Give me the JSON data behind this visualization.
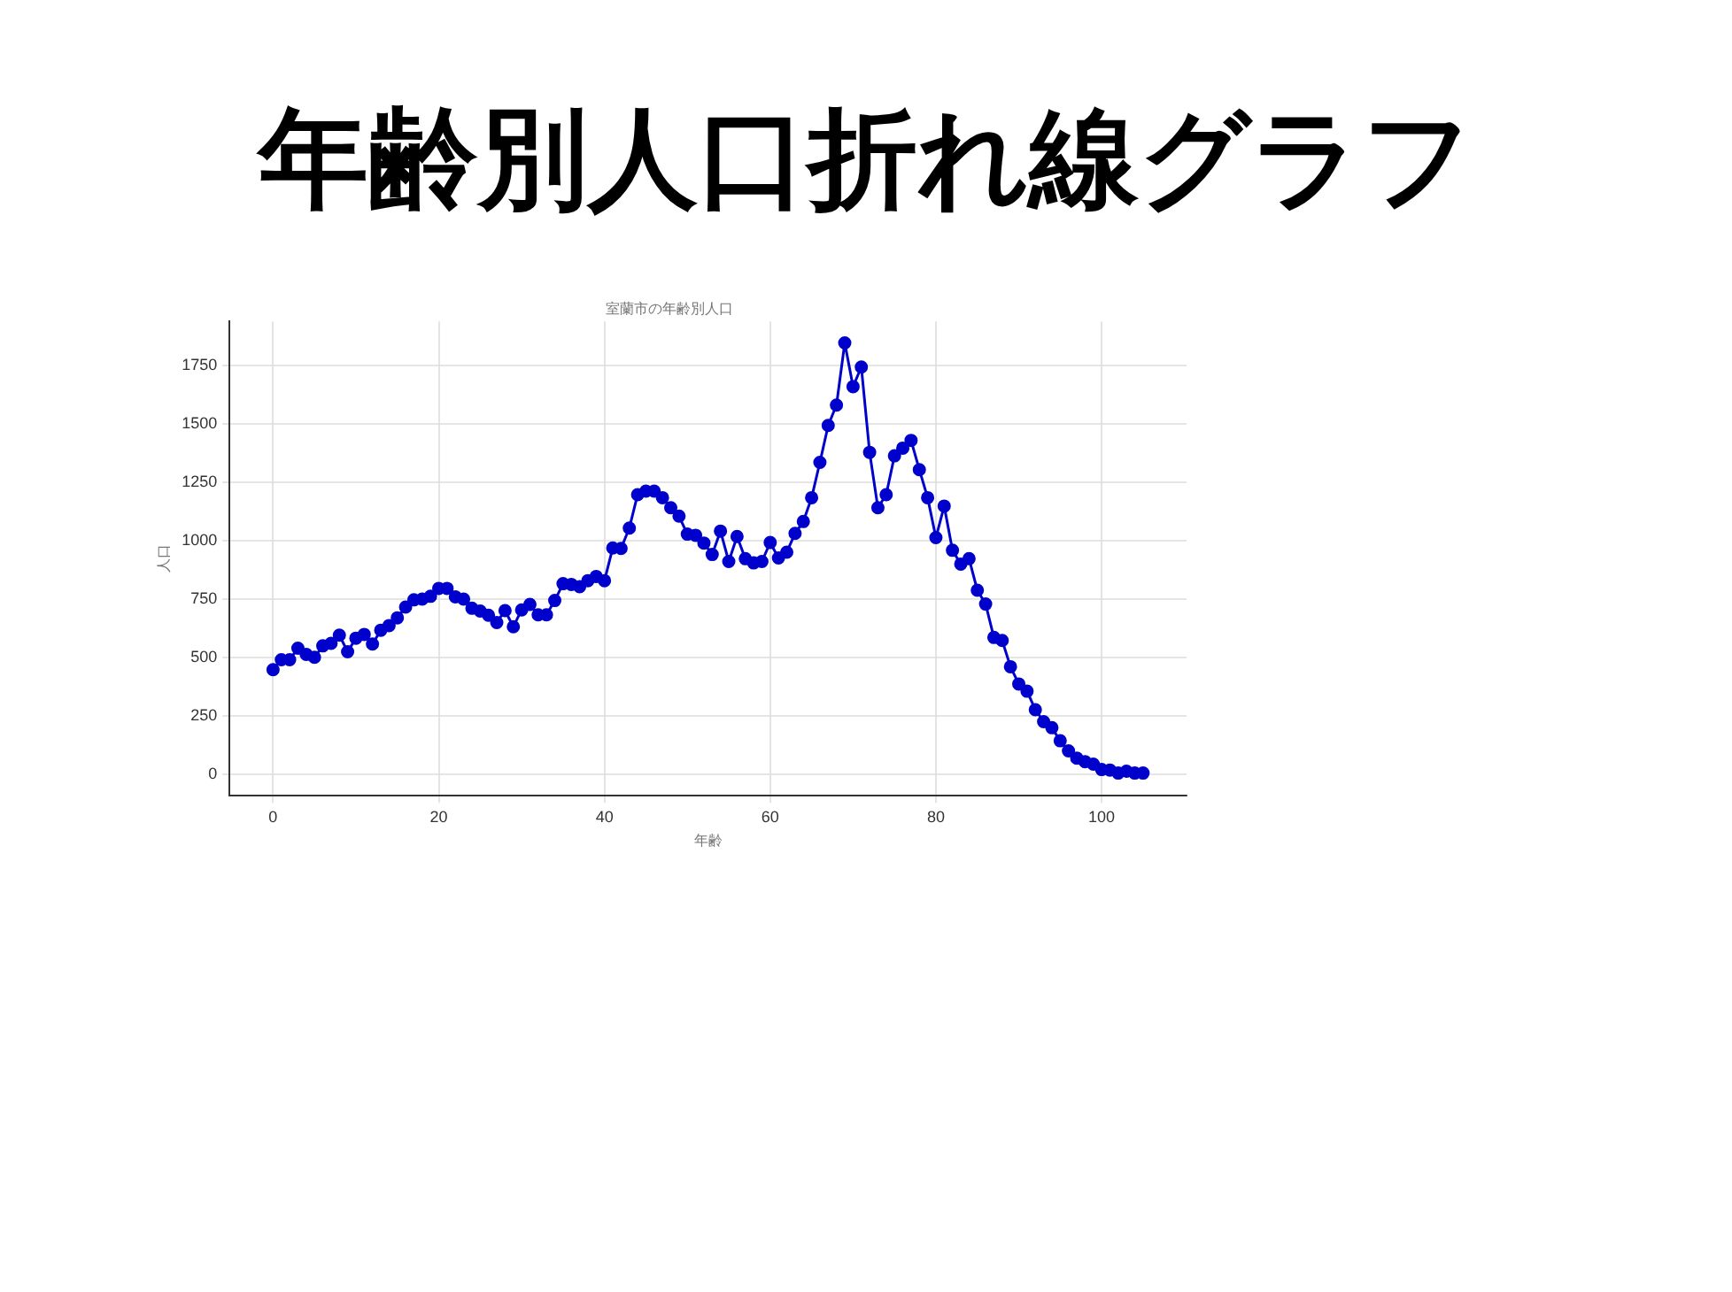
{
  "chart_data": {
    "type": "line",
    "title": "年齢別人口折れ線グラフ",
    "subtitle": "室蘭市の年齢別人口",
    "xlabel": "年齢",
    "ylabel": "人口",
    "x": [
      0,
      1,
      2,
      3,
      4,
      5,
      6,
      7,
      8,
      9,
      10,
      11,
      12,
      13,
      14,
      15,
      16,
      17,
      18,
      19,
      20,
      21,
      22,
      23,
      24,
      25,
      26,
      27,
      28,
      29,
      30,
      31,
      32,
      33,
      34,
      35,
      36,
      37,
      38,
      39,
      40,
      41,
      42,
      43,
      44,
      45,
      46,
      47,
      48,
      49,
      50,
      51,
      52,
      53,
      54,
      55,
      56,
      57,
      58,
      59,
      60,
      61,
      62,
      63,
      64,
      65,
      66,
      67,
      68,
      69,
      70,
      71,
      72,
      73,
      74,
      75,
      76,
      77,
      78,
      79,
      80,
      81,
      82,
      83,
      84,
      85,
      86,
      87,
      88,
      89,
      90,
      91,
      92,
      93,
      94,
      95,
      96,
      97,
      98,
      99,
      100,
      101,
      102,
      103,
      104,
      105
    ],
    "series": [
      {
        "color": "#0000cc",
        "values": [
          447,
          490,
          490,
          539,
          513,
          500,
          549,
          560,
          595,
          524,
          582,
          598,
          557,
          616,
          636,
          669,
          715,
          746,
          749,
          761,
          795,
          795,
          759,
          749,
          710,
          698,
          680,
          649,
          700,
          631,
          703,
          726,
          682,
          682,
          743,
          815,
          812,
          802,
          828,
          846,
          828,
          968,
          966,
          1053,
          1196,
          1211,
          1211,
          1183,
          1140,
          1104,
          1027,
          1022,
          989,
          940,
          1040,
          910,
          1017,
          922,
          904,
          910,
          991,
          925,
          950,
          1030,
          1081,
          1183,
          1334,
          1492,
          1579,
          1845,
          1658,
          1742,
          1377,
          1140,
          1196,
          1362,
          1395,
          1428,
          1303,
          1183,
          1012,
          1147,
          958,
          899,
          922,
          787,
          728,
          585,
          572,
          460,
          386,
          355,
          276,
          225,
          199,
          143,
          100,
          69,
          54,
          43,
          20,
          18,
          5,
          13,
          5,
          5
        ]
      }
    ],
    "xlim": [
      -5.25,
      110.25
    ],
    "ylim": [
      -92,
      1937
    ],
    "xticks": [
      0,
      20,
      40,
      60,
      80,
      100
    ],
    "yticks": [
      0,
      250,
      500,
      750,
      1000,
      1250,
      1500,
      1750
    ],
    "grid": true,
    "legend": false,
    "marker": "circle",
    "line_style": "solid"
  }
}
